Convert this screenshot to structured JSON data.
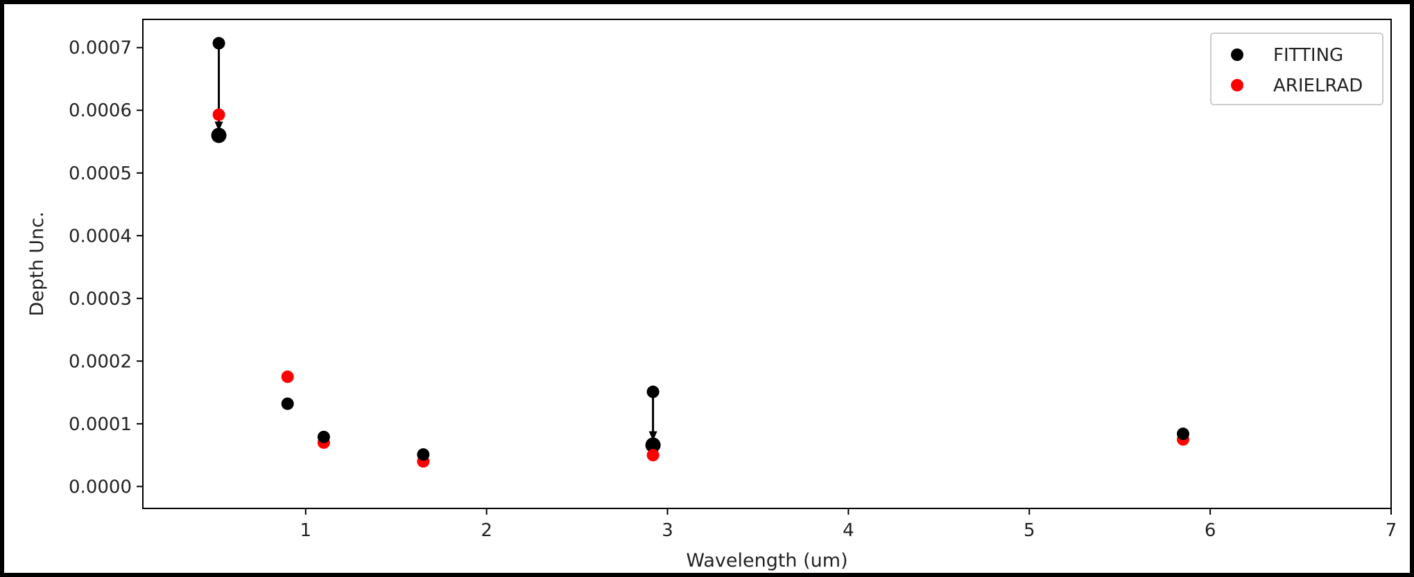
{
  "chart_data": {
    "type": "scatter",
    "title": "",
    "xlabel": "Wavelength (um)",
    "ylabel": "Depth Unc.",
    "xlim": [
      0.1,
      7.0
    ],
    "ylim": [
      -3.5e-05,
      0.000745
    ],
    "xticks": [
      1,
      2,
      3,
      4,
      5,
      6,
      7
    ],
    "xtick_labels": [
      "1",
      "2",
      "3",
      "4",
      "5",
      "6",
      "7"
    ],
    "yticks": [
      0.0,
      0.0001,
      0.0002,
      0.0003,
      0.0004,
      0.0005,
      0.0006,
      0.0007
    ],
    "ytick_labels": [
      "0.0000",
      "0.0001",
      "0.0002",
      "0.0003",
      "0.0004",
      "0.0005",
      "0.0006",
      "0.0007"
    ],
    "grid": false,
    "legend_position": "top-right",
    "series": [
      {
        "name": "FITTING",
        "color": "#000000",
        "points": [
          {
            "x": 0.52,
            "y": 0.000707
          },
          {
            "x": 0.9,
            "y": 0.000132
          },
          {
            "x": 1.1,
            "y": 7.9e-05
          },
          {
            "x": 1.65,
            "y": 5.1e-05
          },
          {
            "x": 2.92,
            "y": 0.000151
          },
          {
            "x": 5.85,
            "y": 8.4e-05
          }
        ]
      },
      {
        "name": "ARIELRAD",
        "color": "#ff0000",
        "points": [
          {
            "x": 0.52,
            "y": 0.000593
          },
          {
            "x": 0.9,
            "y": 0.000175
          },
          {
            "x": 1.1,
            "y": 7e-05
          },
          {
            "x": 1.65,
            "y": 4e-05
          },
          {
            "x": 2.92,
            "y": 5e-05
          },
          {
            "x": 5.85,
            "y": 7.5e-05
          }
        ]
      }
    ],
    "annotations": [
      {
        "type": "arrow",
        "x": 0.52,
        "y_from": 0.000707,
        "y_to": 0.00056,
        "color": "#000000"
      },
      {
        "type": "arrow",
        "x": 2.92,
        "y_from": 0.000151,
        "y_to": 6.6e-05,
        "color": "#000000"
      }
    ]
  }
}
